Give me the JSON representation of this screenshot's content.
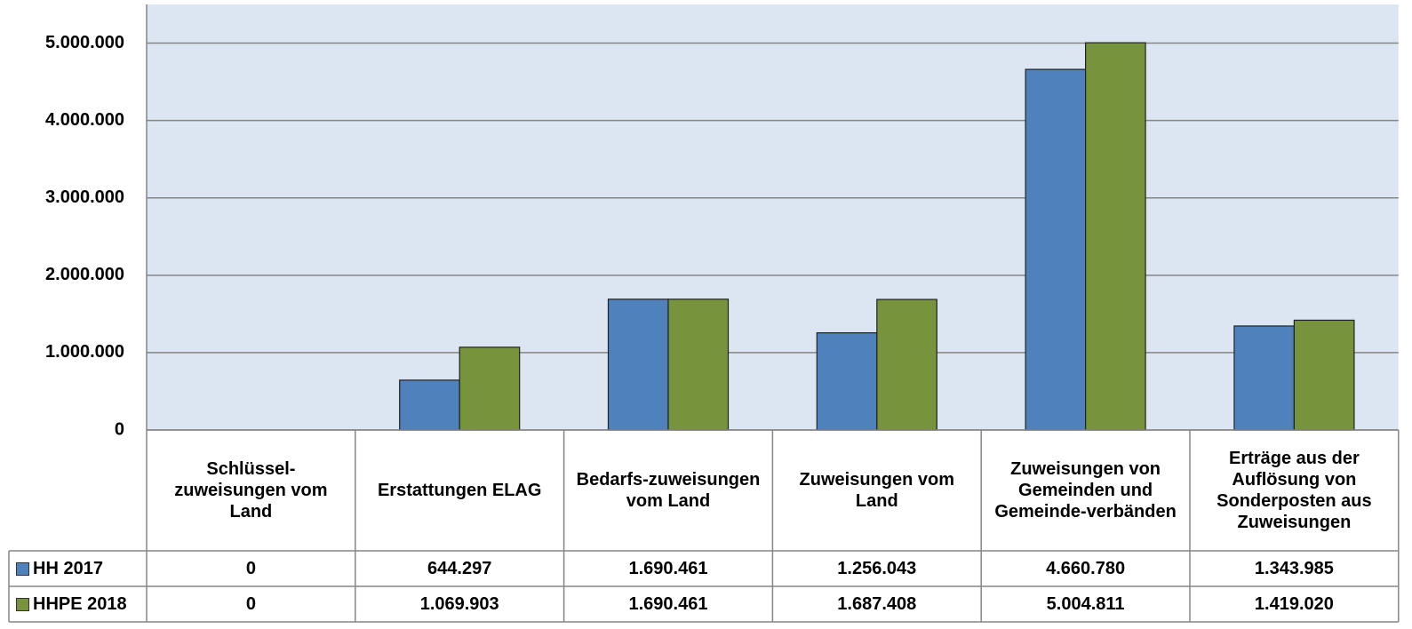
{
  "chart_data": {
    "type": "bar",
    "categories": [
      "Schlüssel-zuweisungen vom Land",
      "Erstattungen ELAG",
      "Bedarfs-zuweisungen vom Land",
      "Zuweisungen vom Land",
      "Zuweisungen von Gemeinden und Gemeinde-verbänden",
      "Erträge aus der Auflösung von Sonderposten aus Zuweisungen"
    ],
    "series": [
      {
        "name": "HH 2017",
        "color": "#4f81bd",
        "values": [
          0,
          644297,
          1690461,
          1256043,
          4660780,
          1343985
        ],
        "value_labels": [
          "0",
          "644.297",
          "1.690.461",
          "1.256.043",
          "4.660.780",
          "1.343.985"
        ]
      },
      {
        "name": "HHPE 2018",
        "color": "#77933c",
        "values": [
          0,
          1069903,
          1690461,
          1687408,
          5004811,
          1419020
        ],
        "value_labels": [
          "0",
          "1.069.903",
          "1.690.461",
          "1.687.408",
          "5.004.811",
          "1.419.020"
        ]
      }
    ],
    "ylim": [
      0,
      5500000
    ],
    "yticks": [
      0,
      {
        "value": 1000000,
        "label": "1.000.000"
      },
      {
        "value": 2000000,
        "label": "2.000.000"
      },
      {
        "value": 3000000,
        "label": "3.000.000"
      },
      {
        "value": 4000000,
        "label": "4.000.000"
      },
      {
        "value": 5000000,
        "label": "5.000.000"
      }
    ],
    "grid": true
  }
}
